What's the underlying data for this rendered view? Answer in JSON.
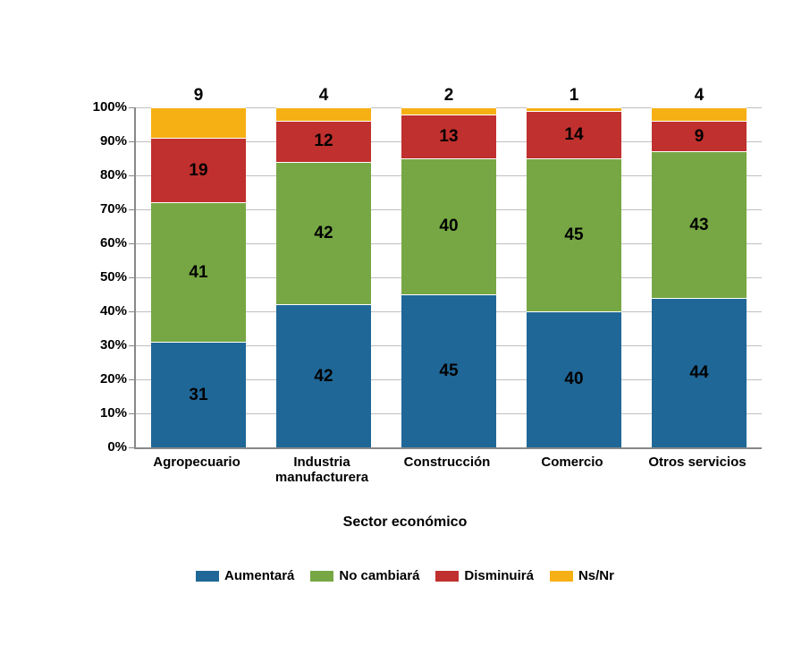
{
  "chart": {
    "type": "stacked-bar-100",
    "background_color": "#ffffff",
    "grid_color": "#c0c0c0",
    "axis_color": "#888888",
    "label_color": "#000000",
    "label_fontsize": 15,
    "data_label_fontsize": 19,
    "ylim": [
      0,
      100
    ],
    "ytick_step": 10,
    "yticks": [
      "0%",
      "10%",
      "20%",
      "30%",
      "40%",
      "50%",
      "60%",
      "70%",
      "80%",
      "90%",
      "100%"
    ],
    "xaxis_title": "Sector económico",
    "categories": [
      {
        "label_lines": [
          "Agropecuario"
        ]
      },
      {
        "label_lines": [
          "Industria",
          "manufacturera"
        ]
      },
      {
        "label_lines": [
          "Construcción"
        ]
      },
      {
        "label_lines": [
          "Comercio"
        ]
      },
      {
        "label_lines": [
          "Otros servicios"
        ]
      }
    ],
    "series": [
      {
        "name": "Aumentará",
        "color": "#1f6797"
      },
      {
        "name": "No cambiará",
        "color": "#77a744"
      },
      {
        "name": "Disminuirá",
        "color": "#c0302e"
      },
      {
        "name": "Ns/Nr",
        "color": "#f6b014"
      }
    ],
    "data": [
      [
        31,
        41,
        19,
        9
      ],
      [
        42,
        42,
        12,
        4
      ],
      [
        45,
        40,
        13,
        2
      ],
      [
        40,
        45,
        14,
        1
      ],
      [
        44,
        43,
        9,
        4
      ]
    ],
    "bar_width_pct": 76,
    "segment_border": "1px solid #ffffff"
  }
}
